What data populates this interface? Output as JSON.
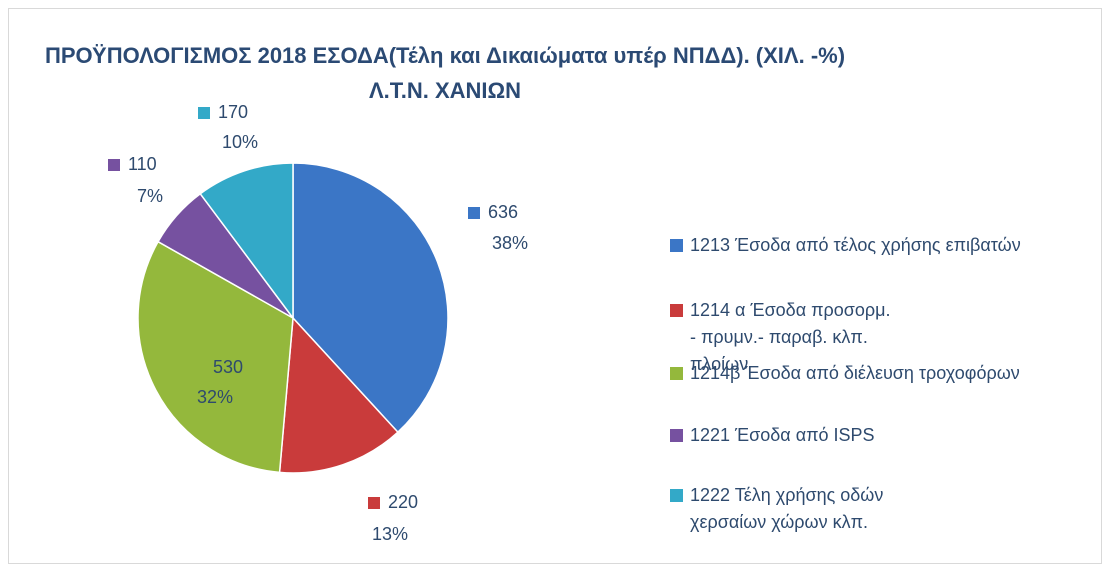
{
  "chart_data": {
    "type": "pie",
    "title": "ΠΡΟΫΠΟΛΟΓΙΣΜΟΣ 2018 ΕΣΟΔΑ(Τέλη  και Δικαιώματα υπέρ ΝΠΔΔ).  (ΧΙΛ. -%) Λ.Τ.Ν. ΧΑΝΙΩΝ",
    "categories": [
      "1213 Έσοδα από τέλος χρήσης επιβατών",
      "1214 α Έσοδα προσορμ. - πρυμν.- παραβ.  κλπ. πλοίων",
      "1214β Έσοδα από διέλευση τροχοφόρων",
      "1221 Έσοδα από ISPS",
      "1222 Τέλη χρήσης οδών χερσαίων χώρων κλπ."
    ],
    "values": [
      636,
      220,
      530,
      110,
      170
    ],
    "percent_labels": [
      "38%",
      "13%",
      "32%",
      "7%",
      "10%"
    ],
    "colors": [
      "#3b76c6",
      "#c93b3b",
      "#94b83c",
      "#7651a0",
      "#33a9c8"
    ],
    "legend": "right"
  }
}
